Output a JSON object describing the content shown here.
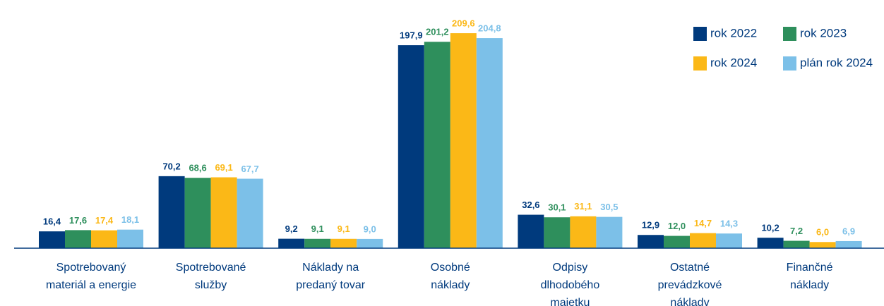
{
  "chart_data": {
    "type": "bar",
    "categories": [
      [
        "Spotrebovaný",
        "materiál a energie"
      ],
      [
        "Spotrebované",
        "služby"
      ],
      [
        "Náklady na",
        "predaný tovar"
      ],
      [
        "Osobné",
        "náklady"
      ],
      [
        "Odpisy",
        "dlhodobého",
        "majetku"
      ],
      [
        "Ostatné",
        "prevádzkové",
        "náklady"
      ],
      [
        "Finančné",
        "náklady"
      ]
    ],
    "series": [
      {
        "name": "rok 2022",
        "color": "#003a7d",
        "values": [
          16.4,
          70.2,
          9.2,
          197.9,
          32.6,
          12.9,
          10.2
        ],
        "value_labels": [
          "16,4",
          "70,2",
          "9,2",
          "197,9",
          "32,6",
          "12,9",
          "10,2"
        ]
      },
      {
        "name": "rok 2023",
        "color": "#2e8f5c",
        "values": [
          17.6,
          68.6,
          9.1,
          201.2,
          30.1,
          12.0,
          7.2
        ],
        "value_labels": [
          "17,6",
          "68,6",
          "9,1",
          "201,2",
          "30,1",
          "12,0",
          "7,2"
        ]
      },
      {
        "name": "rok 2024",
        "color": "#fbb817",
        "values": [
          17.4,
          69.1,
          9.1,
          209.6,
          31.1,
          14.7,
          6.0
        ],
        "value_labels": [
          "17,4",
          "69,1",
          "9,1",
          "209,6",
          "31,1",
          "14,7",
          "6,0"
        ]
      },
      {
        "name": "plán rok 2024",
        "color": "#7cc0e8",
        "values": [
          18.1,
          67.7,
          9.0,
          204.8,
          30.5,
          14.3,
          6.9
        ],
        "value_labels": [
          "18,1",
          "67,7",
          "9,0",
          "204,8",
          "30,5",
          "14,3",
          "6,9"
        ]
      }
    ],
    "ylim": [
      0,
      210
    ],
    "legend": "upper right"
  }
}
